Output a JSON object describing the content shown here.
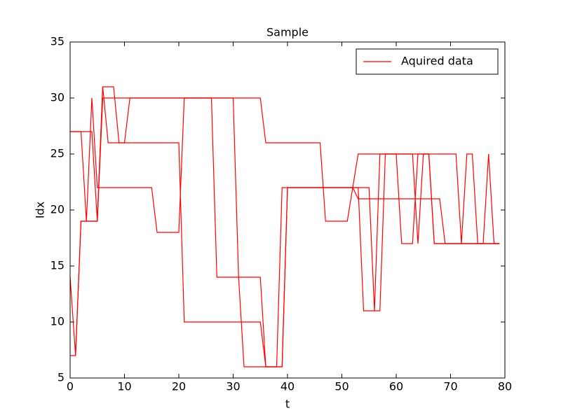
{
  "chart_data": {
    "type": "line",
    "title": "Sample",
    "x_label": "t",
    "y_label": "Idx",
    "x": [
      0,
      1,
      2,
      3,
      4,
      5,
      6,
      7,
      8,
      9,
      10,
      11,
      12,
      13,
      14,
      15,
      16,
      17,
      18,
      19,
      20,
      21,
      22,
      23,
      24,
      25,
      26,
      27,
      28,
      29,
      30,
      31,
      32,
      33,
      34,
      35,
      36,
      37,
      38,
      39,
      40,
      41,
      42,
      43,
      44,
      45,
      46,
      47,
      48,
      49,
      50,
      51,
      52,
      53,
      54,
      55,
      56,
      57,
      58,
      59,
      60,
      61,
      62,
      63,
      64,
      65,
      66,
      67,
      68,
      69,
      70,
      71,
      72,
      73,
      74,
      75,
      76,
      77,
      78,
      79
    ],
    "series": [
      {
        "name": "Aquired data",
        "color": "#ff0000",
        "values": [
          27,
          27,
          27,
          19,
          30,
          22,
          22,
          22,
          22,
          22,
          22,
          22,
          22,
          22,
          22,
          22,
          18,
          18,
          18,
          18,
          18,
          30,
          30,
          30,
          30,
          30,
          30,
          14,
          14,
          14,
          14,
          14,
          14,
          14,
          14,
          14,
          6,
          6,
          6,
          22,
          22,
          22,
          22,
          22,
          22,
          22,
          22,
          22,
          22,
          22,
          22,
          22,
          22,
          22,
          11,
          11,
          11,
          25,
          25,
          25,
          25,
          17,
          17,
          17,
          25,
          25,
          25,
          17,
          17,
          17,
          17,
          17,
          17,
          25,
          25,
          17,
          17,
          25,
          17,
          17
        ]
      },
      {
        "color": "#ff0000",
        "values": [
          14,
          7,
          19,
          19,
          19,
          19,
          31,
          31,
          31,
          26,
          26,
          30,
          30,
          30,
          30,
          30,
          30,
          30,
          30,
          30,
          30,
          30,
          30,
          30,
          30,
          30,
          30,
          30,
          30,
          30,
          30,
          30,
          30,
          30,
          30,
          30,
          26,
          26,
          26,
          26,
          26,
          26,
          26,
          26,
          26,
          26,
          26,
          19,
          19,
          19,
          19,
          19,
          22,
          25,
          25,
          25,
          25,
          25,
          25,
          25,
          25,
          25,
          25,
          25,
          25,
          25,
          25,
          25,
          25,
          25,
          25,
          25,
          17,
          17,
          17,
          17,
          17,
          17,
          17,
          17
        ]
      },
      {
        "color": "#ff0000",
        "values": [
          27,
          27,
          27,
          27,
          27,
          19,
          31,
          26,
          26,
          26,
          26,
          26,
          26,
          26,
          26,
          26,
          26,
          26,
          26,
          26,
          26,
          10,
          10,
          10,
          10,
          10,
          10,
          10,
          10,
          10,
          10,
          10,
          10,
          10,
          10,
          10,
          6,
          6,
          6,
          6,
          22,
          22,
          22,
          22,
          22,
          22,
          22,
          22,
          22,
          22,
          22,
          22,
          22,
          21,
          21,
          21,
          21,
          21,
          21,
          21,
          21,
          21,
          21,
          21,
          21,
          21,
          21,
          21,
          21,
          17,
          17,
          17,
          17,
          17,
          17,
          17,
          17,
          17,
          17,
          17
        ]
      },
      {
        "color": "#ff0000",
        "values": [
          7,
          7,
          19,
          19,
          19,
          19,
          30,
          30,
          30,
          30,
          30,
          30,
          30,
          30,
          30,
          30,
          30,
          30,
          30,
          30,
          30,
          30,
          30,
          30,
          30,
          30,
          30,
          30,
          30,
          30,
          30,
          14,
          6,
          6,
          6,
          6,
          6,
          6,
          6,
          6,
          22,
          22,
          22,
          22,
          22,
          22,
          22,
          22,
          22,
          22,
          22,
          22,
          22,
          22,
          22,
          22,
          11,
          11,
          25,
          25,
          25,
          25,
          25,
          25,
          17,
          25,
          25,
          17,
          17,
          17,
          17,
          17,
          17,
          17,
          17,
          17,
          17,
          17,
          17,
          17
        ]
      }
    ],
    "xlim": [
      0,
      80
    ],
    "xticks": [
      0,
      10,
      20,
      30,
      40,
      50,
      60,
      70,
      80
    ],
    "ylim": [
      5,
      35
    ],
    "yticks": [
      5,
      10,
      15,
      20,
      25,
      30,
      35
    ],
    "legend": "upper right"
  }
}
